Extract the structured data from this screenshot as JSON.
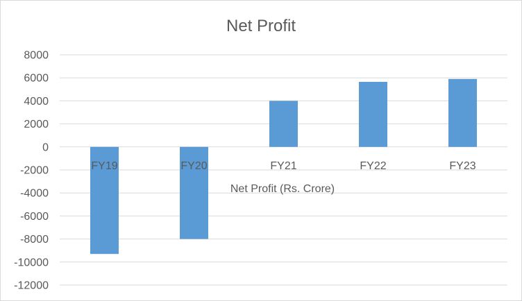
{
  "chart_data": {
    "type": "bar",
    "title": "Net Profit",
    "categories": [
      "FY19",
      "FY20",
      "FY21",
      "FY22",
      "FY23"
    ],
    "series": [
      {
        "name": "",
        "values": [
          -9300,
          -8000,
          4000,
          5650,
          5900
        ]
      }
    ],
    "xlabel": "Net Profit (Rs. Crore)",
    "ylabel": "",
    "ylim": [
      -12000,
      8000
    ],
    "yticks": [
      8000,
      6000,
      4000,
      2000,
      0,
      -2000,
      -4000,
      -6000,
      -8000,
      -10000,
      -12000
    ],
    "grid": true,
    "legend": "none",
    "bar_color": "#5b9bd5"
  }
}
